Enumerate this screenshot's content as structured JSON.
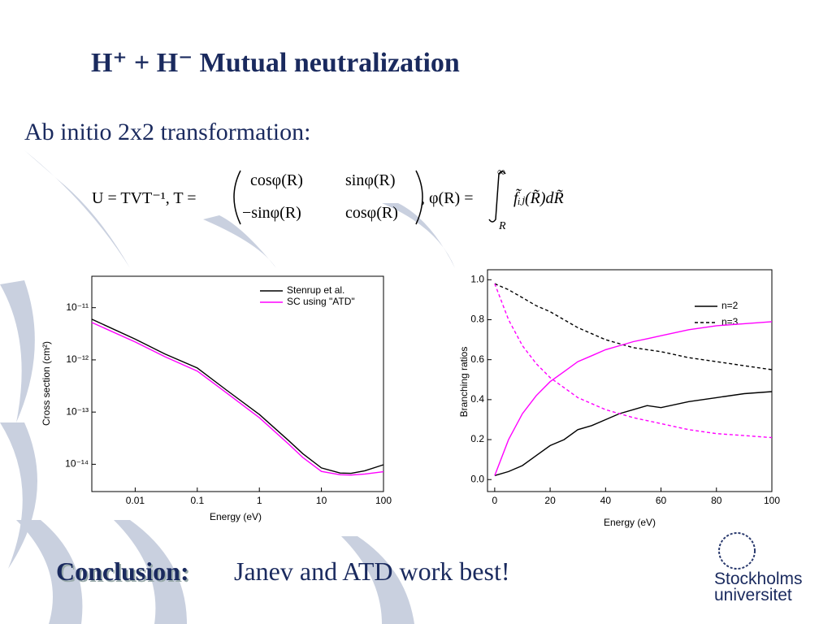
{
  "title": "H⁺ + H⁻     Mutual neutralization",
  "subtitle": "Ab initio 2x2 transformation:",
  "formula": [
    "U = TVT⁻¹,  T =",
    "cosφ(R)",
    "sinφ(R)",
    "−sinφ(R)",
    "cosφ(R)",
    ",  φ(R) =",
    "∞",
    "R",
    "f̃ᵢⱼ(R̃)dR̃"
  ],
  "conclusion": {
    "label": "Conclusion:",
    "text": "Janev and ATD work best!"
  },
  "logo": [
    "Stockholms",
    "universitet"
  ],
  "chart_data": [
    {
      "type": "line",
      "xlabel": "Energy (eV)",
      "ylabel": "Cross section (cm²)",
      "xlog": true,
      "ylog": true,
      "xlim": [
        0.002,
        100
      ],
      "ylim": [
        3e-15,
        4e-11
      ],
      "xticks": [
        0.01,
        0.1,
        1,
        10,
        100
      ],
      "yticks": [
        {
          "value": 1e-14,
          "label": "10⁻¹⁴"
        },
        {
          "value": 1e-13,
          "label": "10⁻¹³"
        },
        {
          "value": 1e-12,
          "label": "10⁻¹²"
        },
        {
          "value": 1e-11,
          "label": "10⁻¹¹"
        }
      ],
      "legend": "upper right",
      "x": [
        0.002,
        0.01,
        0.03,
        0.1,
        0.3,
        1,
        3,
        5,
        10,
        20,
        30,
        50,
        100
      ],
      "series": [
        {
          "name": "Stenrup et al.",
          "color": "#000000",
          "values": [
            6e-12,
            2.5e-12,
            1.3e-12,
            7e-13,
            2.6e-13,
            9e-14,
            2.8e-14,
            1.6e-14,
            8.5e-15,
            6.8e-15,
            6.7e-15,
            7.5e-15,
            9.8e-15
          ]
        },
        {
          "name": "SC using \"ATD\"",
          "color": "#ff00ff",
          "values": [
            5.2e-12,
            2.2e-12,
            1.15e-12,
            6.1e-13,
            2.3e-13,
            7.8e-14,
            2.4e-14,
            1.35e-14,
            7.3e-15,
            6.3e-15,
            6.2e-15,
            6.5e-15,
            7.2e-15
          ]
        }
      ]
    },
    {
      "type": "line",
      "xlabel": "Energy (eV)",
      "ylabel": "Branching ratios",
      "xlim": [
        -2.6,
        100
      ],
      "ylim": [
        -0.06,
        1.05
      ],
      "xticks": [
        0,
        20,
        40,
        60,
        80,
        100
      ],
      "yticks": [
        {
          "value": 0,
          "label": "0.0"
        },
        0.2,
        0.4,
        0.6,
        0.8,
        {
          "value": 1,
          "label": "1.0"
        }
      ],
      "legend": "upper right",
      "x": [
        0,
        5,
        10,
        15,
        20,
        25,
        30,
        35,
        40,
        45,
        50,
        55,
        60,
        70,
        80,
        90,
        100
      ],
      "series": [
        {
          "name": "n=2",
          "color": "#000000",
          "dash": false,
          "values": [
            0.02,
            0.04,
            0.07,
            0.12,
            0.17,
            0.2,
            0.25,
            0.27,
            0.3,
            0.33,
            0.35,
            0.37,
            0.36,
            0.39,
            0.41,
            0.43,
            0.44
          ]
        },
        {
          "name": "n=3",
          "color": "#000000",
          "dash": true,
          "values": [
            0.98,
            0.95,
            0.91,
            0.87,
            0.84,
            0.8,
            0.76,
            0.73,
            0.7,
            0.68,
            0.66,
            0.65,
            0.64,
            0.61,
            0.59,
            0.57,
            0.55
          ]
        },
        {
          "color": "#ff00ff",
          "dash": false,
          "values": [
            0.02,
            0.2,
            0.33,
            0.42,
            0.49,
            0.54,
            0.59,
            0.62,
            0.65,
            0.67,
            0.69,
            0.705,
            0.72,
            0.75,
            0.77,
            0.78,
            0.79
          ]
        },
        {
          "color": "#ff00ff",
          "dash": true,
          "values": [
            0.98,
            0.8,
            0.67,
            0.58,
            0.51,
            0.46,
            0.41,
            0.38,
            0.35,
            0.33,
            0.31,
            0.295,
            0.28,
            0.25,
            0.23,
            0.22,
            0.21
          ]
        }
      ]
    }
  ]
}
